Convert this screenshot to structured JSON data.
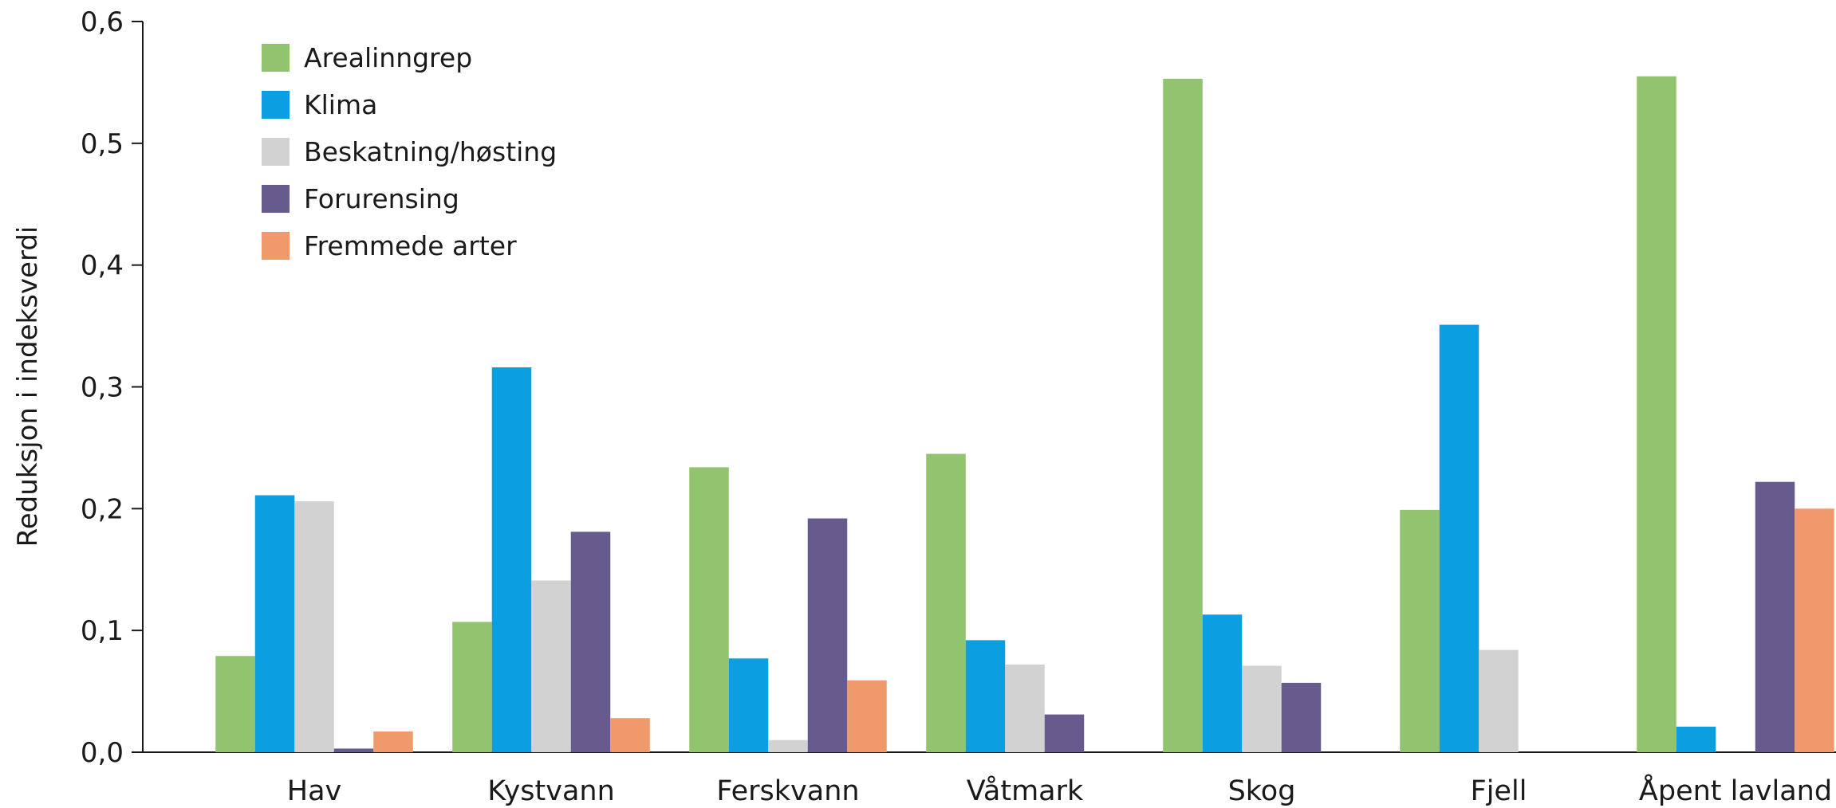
{
  "chart_data": {
    "type": "bar",
    "title": "",
    "xlabel": "",
    "ylabel": "Reduksjon i indeksverdi",
    "ylim": [
      0,
      0.6
    ],
    "yticks": [
      {
        "value": 0.0,
        "label": "0,0"
      },
      {
        "value": 0.1,
        "label": "0,1"
      },
      {
        "value": 0.2,
        "label": "0,2"
      },
      {
        "value": 0.3,
        "label": "0,3"
      },
      {
        "value": 0.4,
        "label": "0,4"
      },
      {
        "value": 0.5,
        "label": "0,5"
      },
      {
        "value": 0.6,
        "label": "0,6"
      }
    ],
    "grid": false,
    "legend_position": "top-left",
    "categories": [
      "Hav",
      "Kystvann",
      "Ferskvann",
      "Våtmark",
      "Skog",
      "Fjell",
      "Åpent lavland"
    ],
    "series": [
      {
        "name": "Arealinngrep",
        "color": "#92c36e",
        "values": [
          0.079,
          0.107,
          0.234,
          0.245,
          0.553,
          0.199,
          0.555
        ]
      },
      {
        "name": "Klima",
        "color": "#0b9ee0",
        "values": [
          0.211,
          0.316,
          0.077,
          0.092,
          0.113,
          0.351,
          0.021
        ]
      },
      {
        "name": "Beskatning/høsting",
        "color": "#d2d2d2",
        "values": [
          0.206,
          0.141,
          0.01,
          0.072,
          0.071,
          0.084,
          0.0
        ]
      },
      {
        "name": "Forurensing",
        "color": "#675a8c",
        "values": [
          0.003,
          0.181,
          0.192,
          0.031,
          0.057,
          0.0,
          0.222
        ]
      },
      {
        "name": "Fremmede arter",
        "color": "#f0996b",
        "values": [
          0.017,
          0.028,
          0.059,
          0.0,
          0.0,
          0.0,
          0.2
        ]
      }
    ]
  }
}
